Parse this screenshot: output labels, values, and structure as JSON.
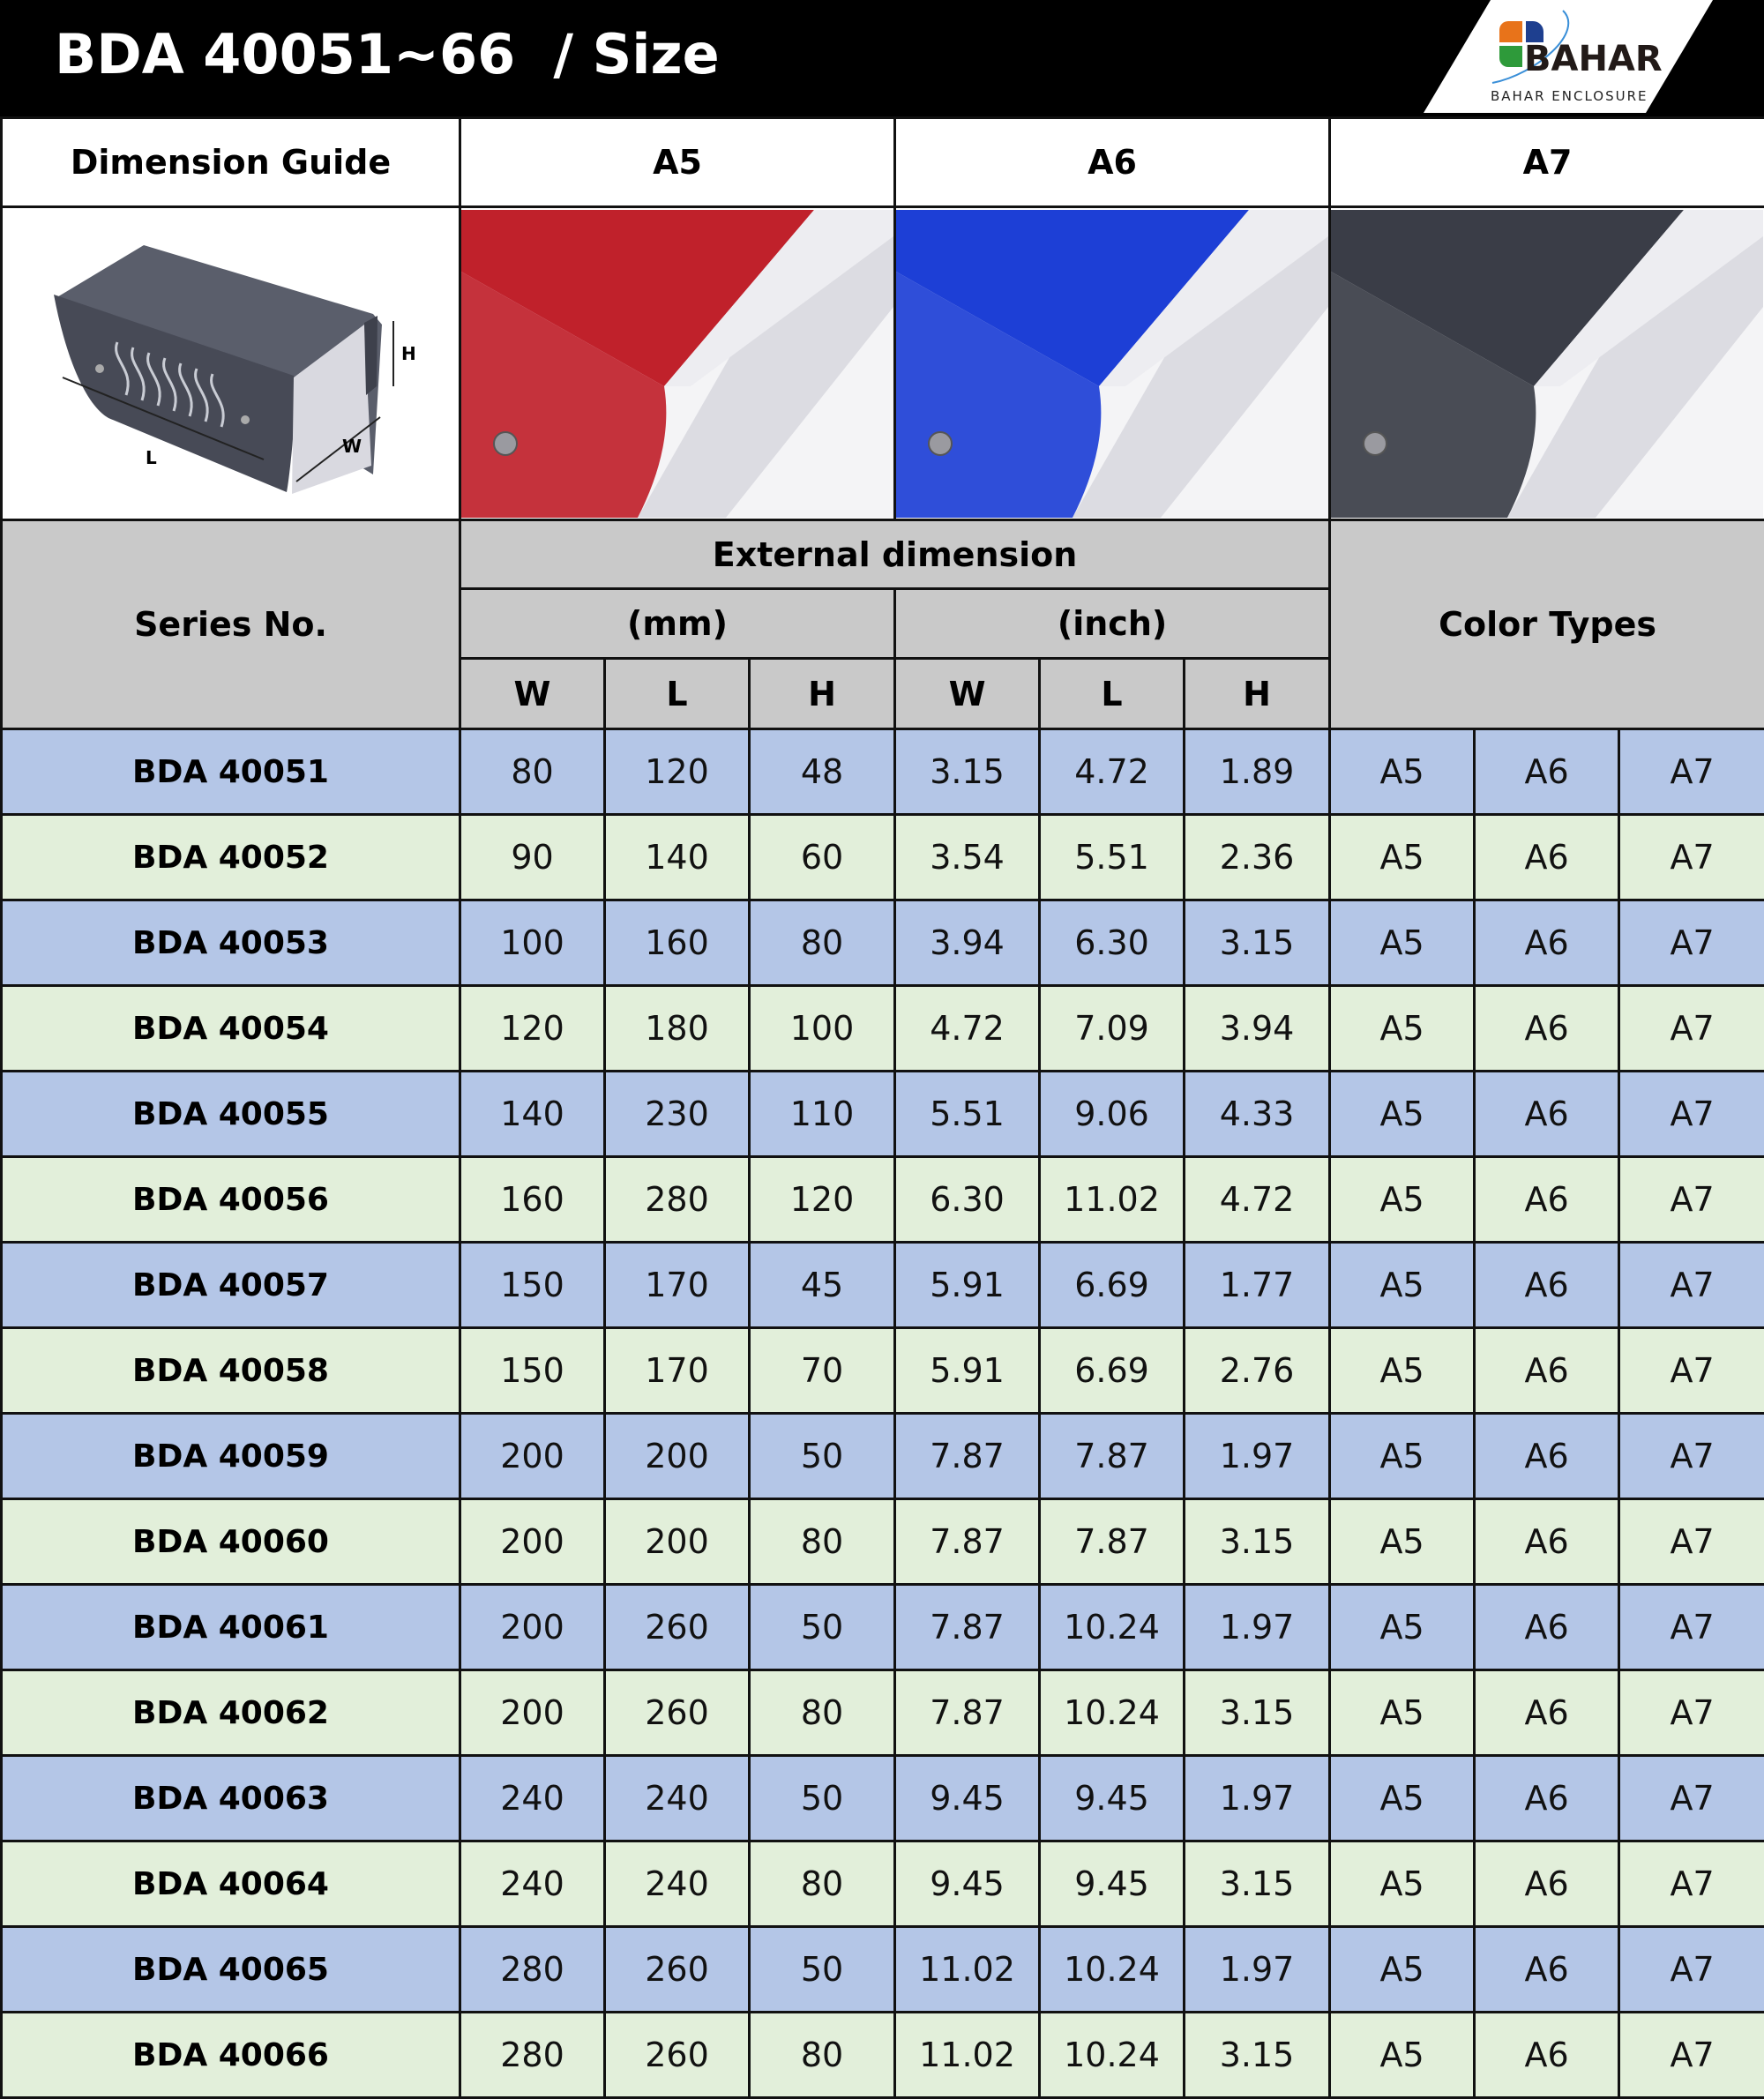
{
  "header": {
    "title": "BDA 40051~66  / Size",
    "logo_text": "BAHAR",
    "logo_subtext": "BAHAR ENCLOSURE"
  },
  "guide": {
    "label": "Dimension Guide",
    "dim_labels": {
      "L": "L",
      "W": "W",
      "H": "H"
    }
  },
  "colors": [
    {
      "label": "A5",
      "hex": "#c0212b"
    },
    {
      "label": "A6",
      "hex": "#1d3fd6"
    },
    {
      "label": "A7",
      "hex": "#3a3d47"
    }
  ],
  "table": {
    "series_header": "Series No.",
    "external_header": "External dimension",
    "unit_mm": "(mm)",
    "unit_inch": "(inch)",
    "color_types_header": "Color Types",
    "sub_headers": [
      "W",
      "L",
      "H",
      "W",
      "L",
      "H"
    ],
    "row_colors": {
      "odd": "#b4c6e7",
      "even": "#e2efda"
    },
    "rows": [
      {
        "series": "BDA 40051",
        "mm": [
          "80",
          "120",
          "48"
        ],
        "inch": [
          "3.15",
          "4.72",
          "1.89"
        ],
        "colors": [
          "A5",
          "A6",
          "A7"
        ]
      },
      {
        "series": "BDA 40052",
        "mm": [
          "90",
          "140",
          "60"
        ],
        "inch": [
          "3.54",
          "5.51",
          "2.36"
        ],
        "colors": [
          "A5",
          "A6",
          "A7"
        ]
      },
      {
        "series": "BDA 40053",
        "mm": [
          "100",
          "160",
          "80"
        ],
        "inch": [
          "3.94",
          "6.30",
          "3.15"
        ],
        "colors": [
          "A5",
          "A6",
          "A7"
        ]
      },
      {
        "series": "BDA 40054",
        "mm": [
          "120",
          "180",
          "100"
        ],
        "inch": [
          "4.72",
          "7.09",
          "3.94"
        ],
        "colors": [
          "A5",
          "A6",
          "A7"
        ]
      },
      {
        "series": "BDA 40055",
        "mm": [
          "140",
          "230",
          "110"
        ],
        "inch": [
          "5.51",
          "9.06",
          "4.33"
        ],
        "colors": [
          "A5",
          "A6",
          "A7"
        ]
      },
      {
        "series": "BDA 40056",
        "mm": [
          "160",
          "280",
          "120"
        ],
        "inch": [
          "6.30",
          "11.02",
          "4.72"
        ],
        "colors": [
          "A5",
          "A6",
          "A7"
        ]
      },
      {
        "series": "BDA 40057",
        "mm": [
          "150",
          "170",
          "45"
        ],
        "inch": [
          "5.91",
          "6.69",
          "1.77"
        ],
        "colors": [
          "A5",
          "A6",
          "A7"
        ]
      },
      {
        "series": "BDA 40058",
        "mm": [
          "150",
          "170",
          "70"
        ],
        "inch": [
          "5.91",
          "6.69",
          "2.76"
        ],
        "colors": [
          "A5",
          "A6",
          "A7"
        ]
      },
      {
        "series": "BDA 40059",
        "mm": [
          "200",
          "200",
          "50"
        ],
        "inch": [
          "7.87",
          "7.87",
          "1.97"
        ],
        "colors": [
          "A5",
          "A6",
          "A7"
        ]
      },
      {
        "series": "BDA 40060",
        "mm": [
          "200",
          "200",
          "80"
        ],
        "inch": [
          "7.87",
          "7.87",
          "3.15"
        ],
        "colors": [
          "A5",
          "A6",
          "A7"
        ]
      },
      {
        "series": "BDA 40061",
        "mm": [
          "200",
          "260",
          "50"
        ],
        "inch": [
          "7.87",
          "10.24",
          "1.97"
        ],
        "colors": [
          "A5",
          "A6",
          "A7"
        ]
      },
      {
        "series": "BDA 40062",
        "mm": [
          "200",
          "260",
          "80"
        ],
        "inch": [
          "7.87",
          "10.24",
          "3.15"
        ],
        "colors": [
          "A5",
          "A6",
          "A7"
        ]
      },
      {
        "series": "BDA 40063",
        "mm": [
          "240",
          "240",
          "50"
        ],
        "inch": [
          "9.45",
          "9.45",
          "1.97"
        ],
        "colors": [
          "A5",
          "A6",
          "A7"
        ]
      },
      {
        "series": "BDA 40064",
        "mm": [
          "240",
          "240",
          "80"
        ],
        "inch": [
          "9.45",
          "9.45",
          "3.15"
        ],
        "colors": [
          "A5",
          "A6",
          "A7"
        ]
      },
      {
        "series": "BDA 40065",
        "mm": [
          "280",
          "260",
          "50"
        ],
        "inch": [
          "11.02",
          "10.24",
          "1.97"
        ],
        "colors": [
          "A5",
          "A6",
          "A7"
        ]
      },
      {
        "series": "BDA 40066",
        "mm": [
          "280",
          "260",
          "80"
        ],
        "inch": [
          "11.02",
          "10.24",
          "3.15"
        ],
        "colors": [
          "A5",
          "A6",
          "A7"
        ]
      }
    ]
  }
}
